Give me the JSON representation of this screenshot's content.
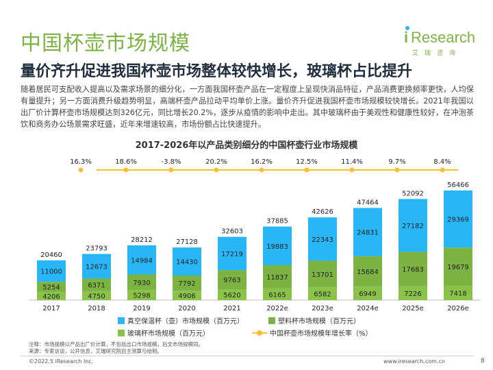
{
  "header": {
    "title": "中国杯壶市场规模",
    "subtitle": "量价齐升促进我国杯壶市场整体较快增长，玻璃杯占比提升",
    "body": "随着居民可支配收入提高以及需求场景的细分化，一方面我国杯壶产品在一定程度上呈现快消品特征，产品消费更换频率更快，人均保有量提升；另一方面消费升级趋势明显，高端杯壶产品拉动平均单价上涨。量价齐升促进我国杯壶市场规模较快增长。2021年我国以出厂价计算杯壶市场规模达到326亿元，同比增长20.2%，逐步从疫情的影响中走出。其中玻璃杯由于美观性和健康性较好，在冲泡茶饮和商务办公场景需求旺盛，近年来增速较高，市场份额占比快速提升。"
  },
  "logo": {
    "i": "i",
    "word": "Research",
    "sub": "艾瑞咨询"
  },
  "chart_data": {
    "type": "bar",
    "stacked": true,
    "title": "2017-2026年以产品类别细分的中国杯壶行业市场规模",
    "categories": [
      "2017",
      "2018",
      "2019",
      "2020",
      "2021",
      "2022e",
      "2023e",
      "2024e",
      "2025e",
      "2026e"
    ],
    "series": [
      {
        "name": "玻璃杯市场规模（百万元）",
        "color": "#8bc34a",
        "values": [
          4206,
          4750,
          5298,
          4906,
          5620,
          6165,
          6582,
          6949,
          7226,
          7418
        ]
      },
      {
        "name": "塑料杯市场规模（百万元）",
        "color": "#7cb342",
        "values": [
          5254,
          6371,
          7930,
          7792,
          9763,
          11837,
          13701,
          15684,
          17683,
          19679
        ]
      },
      {
        "name": "真空保温杯（壶）市场规模（百万元）",
        "color": "#29b6f6",
        "values": [
          11000,
          12673,
          14984,
          14430,
          17219,
          19883,
          22343,
          24831,
          27182,
          29369
        ]
      }
    ],
    "totals": [
      20460,
      23793,
      28212,
      27128,
      32603,
      37885,
      42626,
      47464,
      52092,
      56466
    ],
    "growth_line": {
      "name": "中国杯壶市场规模年增长率（%）",
      "color": "#fbc02d",
      "values": [
        16.3,
        18.6,
        -3.8,
        20.2,
        16.2,
        12.5,
        11.4,
        9.7,
        8.4
      ],
      "labels": [
        "16.3%",
        "18.6%",
        "-3.8%",
        "20.2%",
        "16.2%",
        "12.5%",
        "11.4%",
        "9.7%",
        "8.4%"
      ]
    },
    "ylim": [
      0,
      60000
    ],
    "grid": false,
    "legend": "bottom"
  },
  "notes": {
    "line1": "注释：市场规模以产品出厂价计算，不包括出口市场规模，后文市场规模同。",
    "line2": "来源：专家访谈，公开信息，艾瑞研究院自主测算与绘制。"
  },
  "footer": {
    "copyright": "©2022.5 iResearch Inc.",
    "url": "www.iresearch.com.cn",
    "page": "8"
  }
}
